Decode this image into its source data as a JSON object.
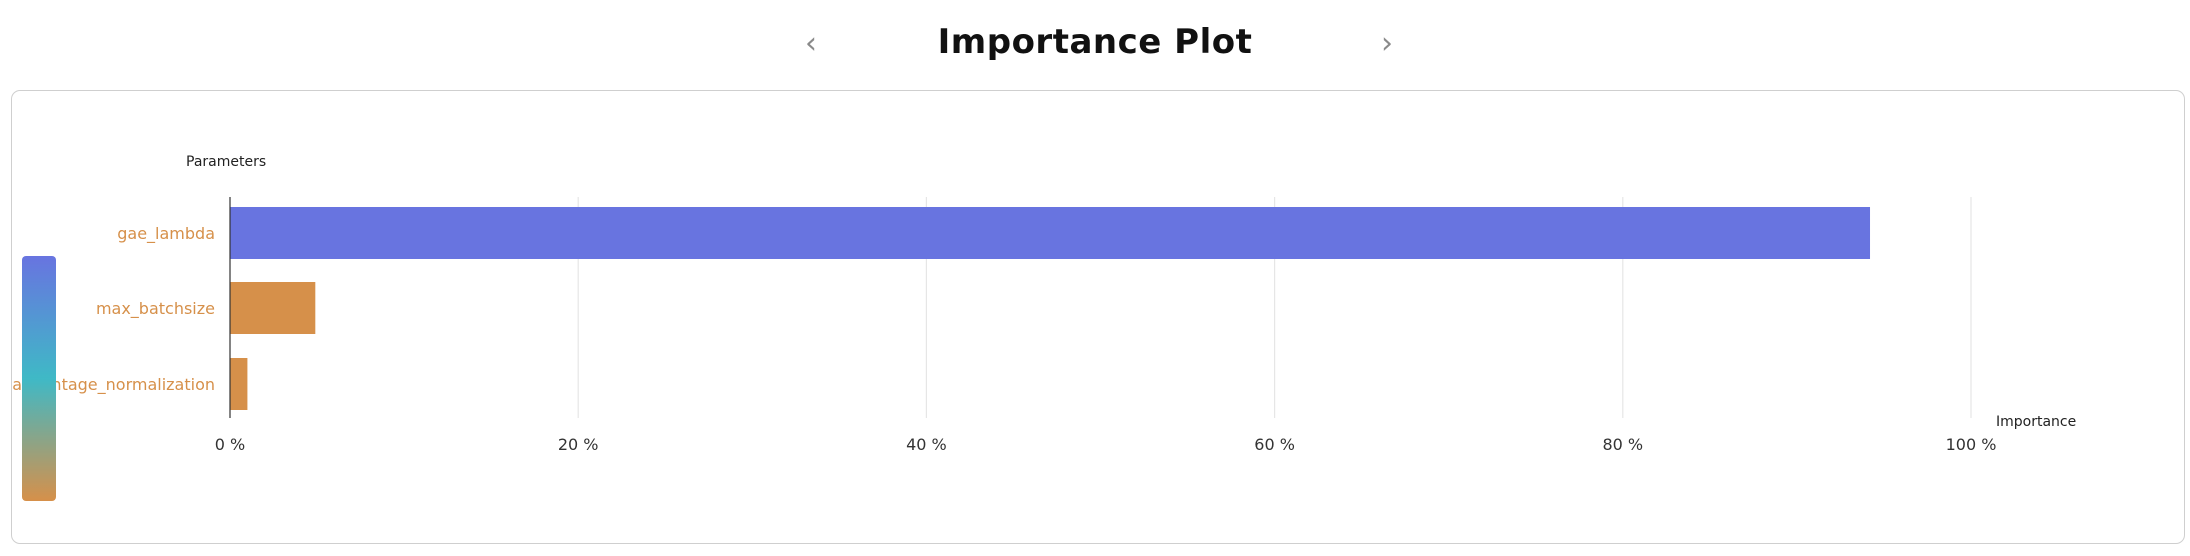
{
  "header": {
    "title": "Importance Plot",
    "prev_label": "‹",
    "next_label": "›"
  },
  "colors": {
    "bar_high": "#6874e0",
    "bar_low": "#d6904a",
    "gradient_top": "#6874e0",
    "gradient_mid": "#3fb9c6",
    "gradient_bottom": "#d6904a",
    "label_color": "#d6904a",
    "grid": "#e6e6e6"
  },
  "chart_data": {
    "type": "bar",
    "orientation": "horizontal",
    "y_axis_title": "Parameters",
    "x_axis_title": "Importance",
    "categories": [
      "gae_lambda",
      "max_batchsize",
      "advantage_normalization"
    ],
    "values": [
      94.2,
      4.9,
      1.0
    ],
    "xlim": [
      0,
      100
    ],
    "x_ticks": [
      0,
      20,
      40,
      60,
      80,
      100
    ],
    "x_tick_labels": [
      "0 %",
      "20 %",
      "40 %",
      "60 %",
      "80 %",
      "100 %"
    ],
    "grid": true,
    "legend": "colorbar-left"
  }
}
